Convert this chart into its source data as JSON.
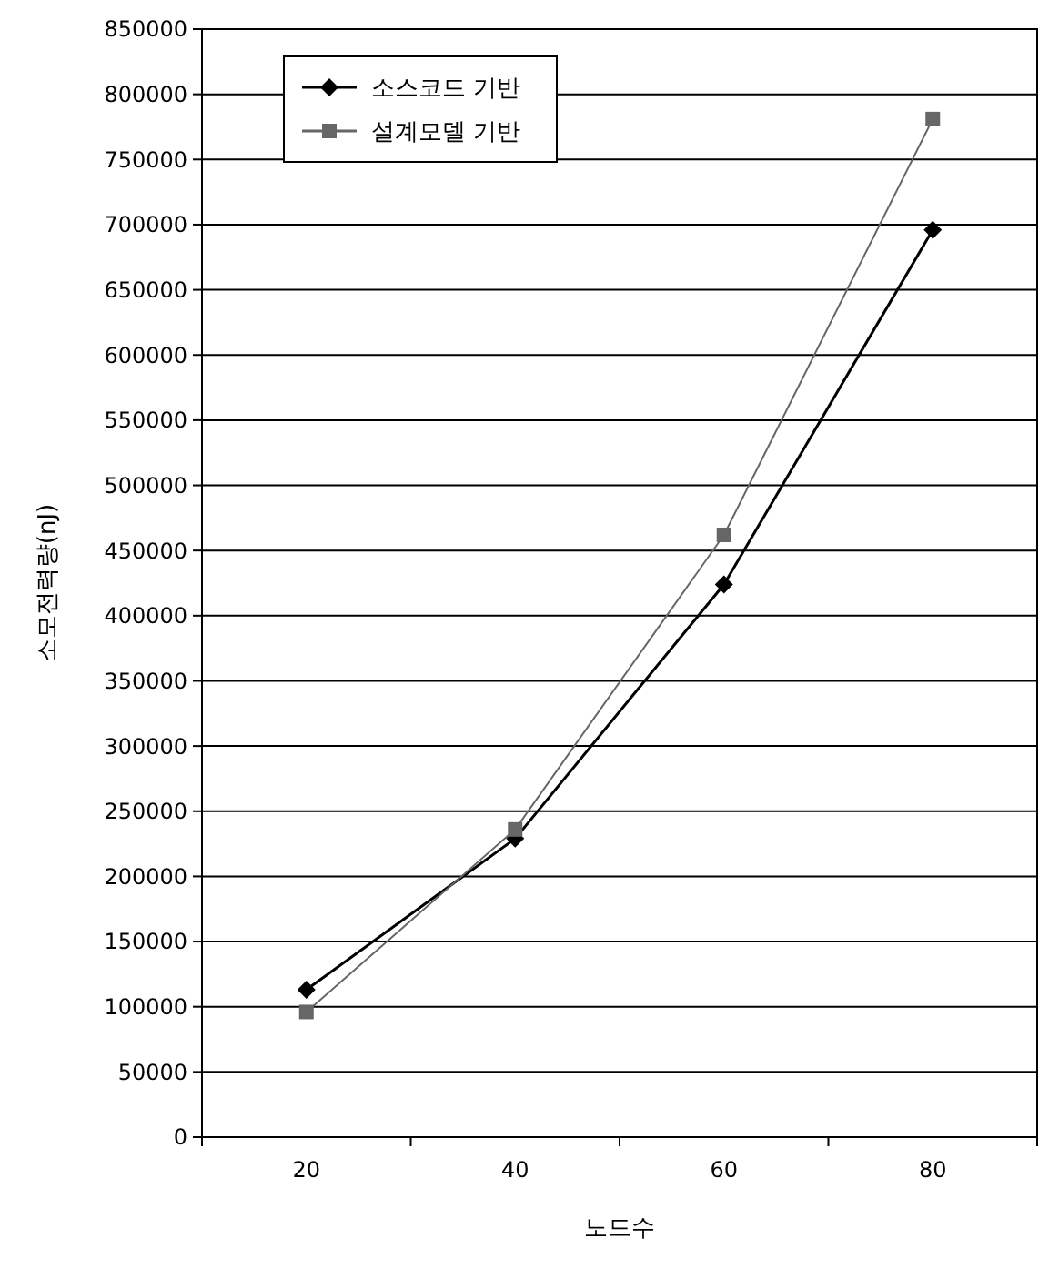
{
  "chart_data": {
    "type": "line",
    "xlabel": "노드수",
    "ylabel": "소모전력량(nJ)",
    "categories": [
      "20",
      "40",
      "60",
      "80"
    ],
    "series": [
      {
        "name": "소스코드 기반",
        "color": "#000000",
        "marker": "diamond",
        "values": [
          113000,
          229000,
          424000,
          696000
        ]
      },
      {
        "name": "설계모델 기반",
        "color": "#666666",
        "marker": "square",
        "values": [
          96000,
          236000,
          462000,
          781000
        ]
      }
    ],
    "ylim": [
      0,
      850000
    ],
    "yticks": [
      0,
      50000,
      100000,
      150000,
      200000,
      250000,
      300000,
      350000,
      400000,
      450000,
      500000,
      550000,
      600000,
      650000,
      700000,
      750000,
      800000,
      850000
    ],
    "grid": "y",
    "legend": "top left"
  }
}
